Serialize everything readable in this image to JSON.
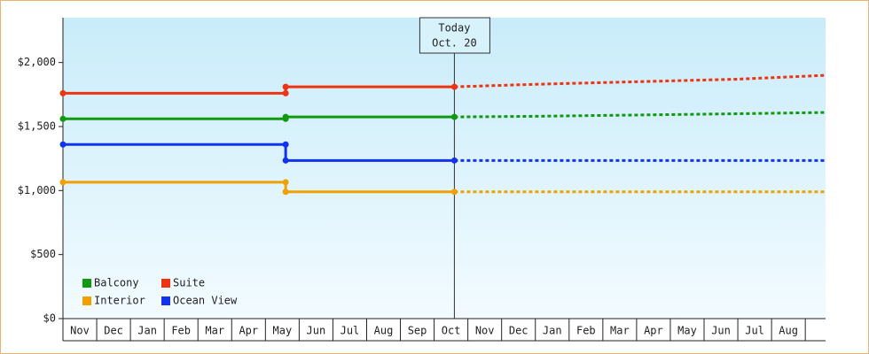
{
  "chart_data": {
    "type": "line",
    "annotation": {
      "x": 11.6,
      "lines": [
        "Today",
        "Oct. 20"
      ]
    },
    "categories": [
      "Nov",
      "Dec",
      "Jan",
      "Feb",
      "Mar",
      "Apr",
      "May",
      "Jun",
      "Jul",
      "Aug",
      "Sep",
      "Oct",
      "Nov",
      "Dec",
      "Jan",
      "Feb",
      "Mar",
      "Apr",
      "May",
      "Jun",
      "Jul",
      "Aug"
    ],
    "xlim": [
      0,
      22.6
    ],
    "ylim": [
      0,
      2350
    ],
    "yticks": [
      {
        "value": 0,
        "label": "$0"
      },
      {
        "value": 500,
        "label": "$500"
      },
      {
        "value": 1000,
        "label": "$1,000"
      },
      {
        "value": 1500,
        "label": "$1,500"
      },
      {
        "value": 2000,
        "label": "$2,000"
      }
    ],
    "series": [
      {
        "name": "Balcony",
        "color": "#119911",
        "x": [
          0,
          6.6,
          6.6,
          11.6
        ],
        "values": [
          1560,
          1560,
          1575,
          1575
        ],
        "forecast_x": [
          11.6,
          14,
          17,
          20,
          22.6
        ],
        "forecast_values": [
          1575,
          1580,
          1590,
          1600,
          1610
        ]
      },
      {
        "name": "Suite",
        "color": "#ee3311",
        "x": [
          0,
          6.6,
          6.6,
          11.6
        ],
        "values": [
          1760,
          1760,
          1810,
          1810
        ],
        "forecast_x": [
          11.6,
          14,
          17,
          20,
          22.6
        ],
        "forecast_values": [
          1810,
          1830,
          1850,
          1870,
          1900
        ]
      },
      {
        "name": "Interior",
        "color": "#f0a000",
        "x": [
          0,
          6.6,
          6.6,
          11.6
        ],
        "values": [
          1065,
          1065,
          990,
          990
        ],
        "forecast_x": [
          11.6,
          22.6
        ],
        "forecast_values": [
          990,
          990
        ]
      },
      {
        "name": "Ocean View",
        "color": "#1133ee",
        "x": [
          0,
          6.6,
          6.6,
          11.6
        ],
        "values": [
          1360,
          1360,
          1235,
          1235
        ],
        "forecast_x": [
          11.6,
          22.6
        ],
        "forecast_values": [
          1235,
          1235
        ]
      }
    ]
  }
}
